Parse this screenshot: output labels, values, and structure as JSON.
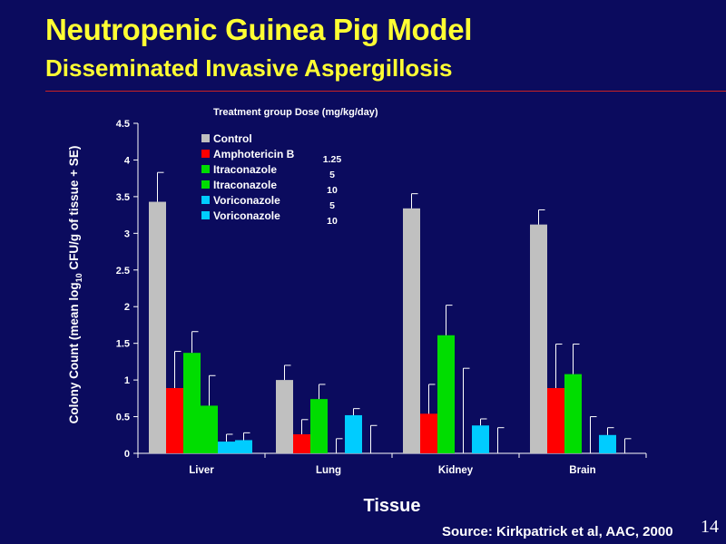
{
  "slide": {
    "title": "Neutropenic Guinea Pig Model",
    "subtitle": "Disseminated Invasive Aspergillosis",
    "source": "Source: Kirkpatrick et al, AAC, 2000",
    "slide_number": "14"
  },
  "chart_data": {
    "type": "bar",
    "title": "",
    "xlabel": "Tissue",
    "ylabel": "Colony Count (mean log10 CFU/g of tissue + SE)",
    "ylabel_parts": {
      "pre": "Colony Count (mean log",
      "sub": "10",
      "post": " CFU/g of tissue + SE)"
    },
    "ylim": [
      0,
      4.5
    ],
    "yticks": [
      "0",
      "0.5",
      "1",
      "1.5",
      "2",
      "2.5",
      "3",
      "3.5",
      "4",
      "4.5"
    ],
    "categories": [
      "Liver",
      "Lung",
      "Kidney",
      "Brain"
    ],
    "legend_header": "Treatment group  Dose (mg/kg/day)",
    "legend_placement": "top-center",
    "grid": false,
    "series": [
      {
        "name": "Control",
        "dose": "",
        "color": "#c0c0c0",
        "values": [
          3.43,
          1.0,
          3.34,
          3.12
        ],
        "errors": [
          0.4,
          0.2,
          0.2,
          0.2
        ]
      },
      {
        "name": "Amphotericin B",
        "dose": "1.25",
        "color": "#ff0000",
        "values": [
          0.89,
          0.26,
          0.54,
          0.89
        ],
        "errors": [
          0.5,
          0.2,
          0.4,
          0.6
        ]
      },
      {
        "name": "Itraconazole",
        "dose": "5",
        "color": "#00dd00",
        "values": [
          1.37,
          0.74,
          1.61,
          1.08
        ],
        "errors": [
          0.29,
          0.2,
          0.41,
          0.41
        ]
      },
      {
        "name": "Itraconazole",
        "dose": "10",
        "color": "#00dd00",
        "values": [
          0.65,
          0.0,
          0.0,
          0.0
        ],
        "errors": [
          0.41,
          0.2,
          1.16,
          0.5
        ]
      },
      {
        "name": "Voriconazole",
        "dose": "5",
        "color": "#00ccff",
        "values": [
          0.16,
          0.52,
          0.38,
          0.25
        ],
        "errors": [
          0.1,
          0.09,
          0.09,
          0.1
        ]
      },
      {
        "name": "Voriconazole",
        "dose": "10",
        "color": "#00ccff",
        "values": [
          0.18,
          0.0,
          0.0,
          0.0
        ],
        "errors": [
          0.1,
          0.38,
          0.35,
          0.2
        ]
      }
    ]
  }
}
